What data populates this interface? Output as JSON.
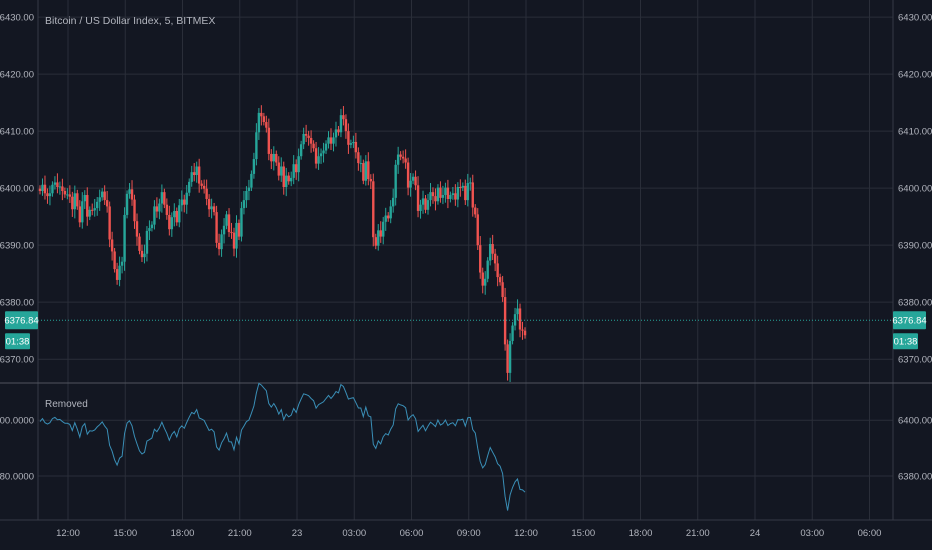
{
  "title": "Bitcoin / US Dollar Index, 5, BITMEX",
  "price_label": "6376.84",
  "countdown": "01:38",
  "indicator_label": "Removed",
  "colors": {
    "background": "#131722",
    "grid": "#2a2e39",
    "text": "#b2b5be",
    "up": "#26a69a",
    "down": "#ef5350",
    "indicator": "#3a8fb7",
    "price_line": "#26a69a"
  },
  "chart_data": [
    {
      "type": "candlestick",
      "title": "Bitcoin / US Dollar Index, 5, BITMEX",
      "y_ticks": [
        "6430.00",
        "6420.00",
        "6410.00",
        "6400.00",
        "6390.00",
        "6380.00",
        "6370.00"
      ],
      "ylim": [
        6366.0,
        6433.0
      ],
      "last_price": 6376.84,
      "x_ticks": [
        "12:00",
        "15:00",
        "18:00",
        "21:00",
        "23",
        "03:00",
        "06:00",
        "09:00",
        "12:00",
        "15:00",
        "18:00",
        "21:00",
        "24",
        "03:00",
        "06:00"
      ],
      "series_closes": [
        6399.5,
        6400.6,
        6399.1,
        6398.6,
        6399.1,
        6400.6,
        6401.0,
        6400.2,
        6400.3,
        6399.5,
        6398.9,
        6398.9,
        6398.5,
        6396.3,
        6399.1,
        6396.8,
        6394.0,
        6397.7,
        6398.8,
        6395.0,
        6396.2,
        6396.1,
        6396.5,
        6397.6,
        6398.4,
        6399.4,
        6397.9,
        6396.8,
        6391.0,
        6388.9,
        6385.8,
        6383.9,
        6386.4,
        6387.1,
        6395.3,
        6399.0,
        6399.8,
        6398.0,
        6394.2,
        6391.5,
        6389.0,
        6387.9,
        6388.5,
        6392.5,
        6393.0,
        6393.6,
        6396.8,
        6395.9,
        6397.3,
        6399.3,
        6397.1,
        6395.3,
        6392.8,
        6394.9,
        6396.0,
        6394.0,
        6397.0,
        6398.0,
        6397.1,
        6399.2,
        6401.1,
        6402.8,
        6402.3,
        6403.8,
        6400.8,
        6400.4,
        6399.9,
        6398.1,
        6396.3,
        6396.8,
        6395.8,
        6390.4,
        6389.3,
        6391.9,
        6393.4,
        6395.4,
        6392.3,
        6392.2,
        6389.4,
        6393.9,
        6391.5,
        6396.5,
        6397.9,
        6399.5,
        6400.1,
        6402.5,
        6405.1,
        6409.8,
        6413.2,
        6412.6,
        6411.6,
        6410.6,
        6406.0,
        6404.7,
        6406.0,
        6404.5,
        6402.2,
        6403.8,
        6400.2,
        6402.2,
        6401.2,
        6401.8,
        6404.2,
        6402.8,
        6405.6,
        6407.7,
        6409.5,
        6409.2,
        6408.8,
        6407.8,
        6407.0,
        6404.3,
        6405.6,
        6406.1,
        6406.6,
        6407.8,
        6408.9,
        6407.8,
        6408.9,
        6410.3,
        6409.8,
        6412.8,
        6412.1,
        6410.0,
        6407.6,
        6407.9,
        6408.1,
        6406.3,
        6404.4,
        6404.4,
        6401.3,
        6404.7,
        6401.6,
        6401.2,
        6391.4,
        6389.9,
        6392.6,
        6391.5,
        6394.1,
        6395.2,
        6394.7,
        6396.8,
        6398.3,
        6404.1,
        6405.9,
        6405.5,
        6405.2,
        6404.5,
        6400.1,
        6401.3,
        6402.0,
        6400.5,
        6396.0,
        6397.1,
        6398.2,
        6396.2,
        6397.9,
        6399.3,
        6398.6,
        6397.7,
        6400.1,
        6398.3,
        6398.8,
        6400.1,
        6398.1,
        6398.8,
        6399.1,
        6398.0,
        6400.2,
        6400.1,
        6400.4,
        6397.9,
        6400.9,
        6401.0,
        6396.6,
        6395.4,
        6390.0,
        6385.2,
        6382.9,
        6384.1,
        6387.3,
        6390.2,
        6388.5,
        6386.8,
        6384.4,
        6383.5,
        6380.9,
        6372.6,
        6367.6,
        6373.2,
        6375.9,
        6377.9,
        6378.9,
        6375.2,
        6375.0,
        6374.2
      ],
      "indicator": {
        "name": "Removed",
        "y_ticks": [
          "6400.0000",
          "6380.0000"
        ],
        "ylim": [
          6366.0,
          6413.0
        ]
      }
    }
  ]
}
